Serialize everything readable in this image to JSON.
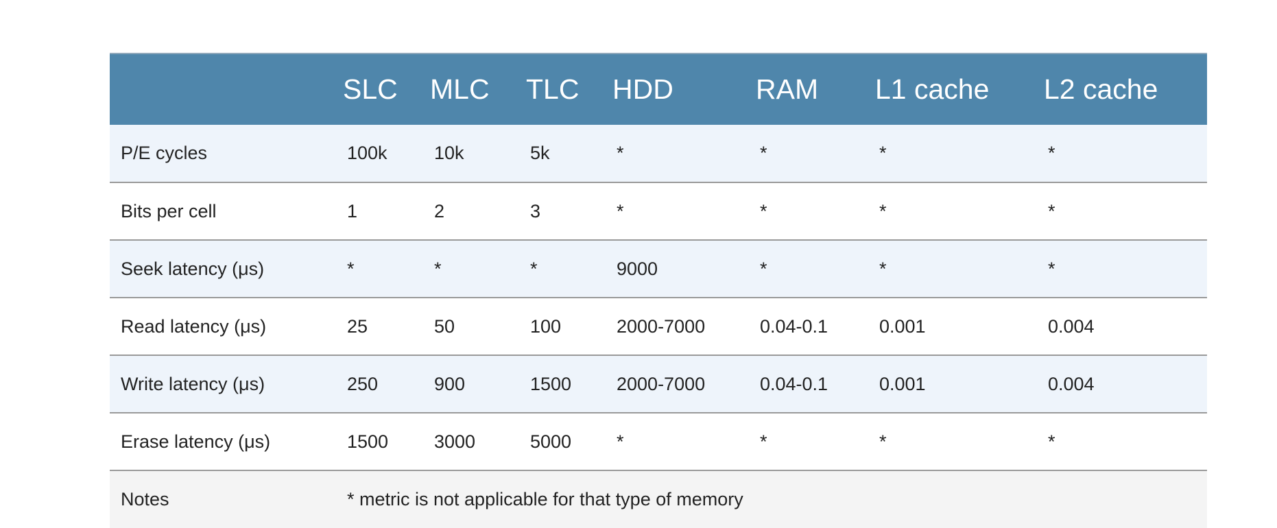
{
  "table": {
    "headers": [
      "",
      "SLC",
      "MLC",
      "TLC",
      "HDD",
      "RAM",
      "L1 cache",
      "L2 cache"
    ],
    "rows": [
      {
        "label": "P/E cycles",
        "cells": [
          "100k",
          "10k",
          "5k",
          "*",
          "*",
          "*",
          "*"
        ]
      },
      {
        "label": "Bits per cell",
        "cells": [
          "1",
          "2",
          "3",
          "*",
          "*",
          "*",
          "*"
        ]
      },
      {
        "label": "Seek latency (μs)",
        "cells": [
          "*",
          "*",
          "*",
          "9000",
          "*",
          "*",
          "*"
        ]
      },
      {
        "label": "Read latency (μs)",
        "cells": [
          "25",
          "50",
          "100",
          "2000-7000",
          "0.04-0.1",
          "0.001",
          "0.004"
        ]
      },
      {
        "label": "Write latency (μs)",
        "cells": [
          "250",
          "900",
          "1500",
          "2000-7000",
          "0.04-0.1",
          "0.001",
          "0.004"
        ]
      },
      {
        "label": "Erase latency (μs)",
        "cells": [
          "1500",
          "3000",
          "5000",
          "*",
          "*",
          "*",
          "*"
        ]
      }
    ],
    "note": {
      "label": "Notes",
      "text": "* metric is not applicable for that type of memory"
    }
  },
  "colors": {
    "header_bg": "#4f86ab",
    "row_alt_bg": "#eef4fb",
    "row_bg": "#ffffff",
    "note_bg": "#f4f4f4"
  }
}
